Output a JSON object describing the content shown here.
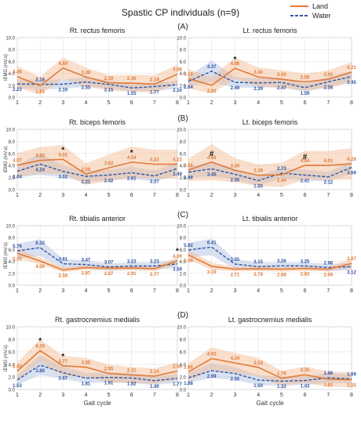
{
  "title": "Spastic CP individuals (n=9)",
  "legend": [
    {
      "name": "Land",
      "color": "#E07B39",
      "style": "solid"
    },
    {
      "name": "Water",
      "color": "#2F55A4",
      "style": "dashed"
    }
  ],
  "xlabel": "Gait cycle",
  "ylabel": "iEMG (mV.s)",
  "colors": {
    "land": "#E07B39",
    "water": "#2F55A4",
    "land_band": "#F2B88E",
    "water_band": "#B9C9E6",
    "grid": "#dddddd"
  },
  "chart_data": [
    {
      "type": "line",
      "panel": "(A)",
      "title": "Rt. rectus femoris",
      "x": [
        1,
        2,
        3,
        4,
        5,
        6,
        7,
        8
      ],
      "xlim": [
        1,
        8
      ],
      "ylim": [
        0,
        10
      ],
      "yticks": [
        0,
        2,
        4,
        6,
        8,
        10
      ],
      "xlabel": "",
      "ylabel": "iEMG (mV.s)",
      "series": [
        {
          "name": "Land",
          "values": [
            3.46,
            1.91,
            4.89,
            3.38,
            2.39,
            2.36,
            2.19,
            3.86
          ],
          "band": [
            1.8,
            1.5,
            1.8,
            1.6,
            1.3,
            1.4,
            1.5,
            1.6
          ]
        },
        {
          "name": "Water",
          "values": [
            2.23,
            2.16,
            2.19,
            2.55,
            2.15,
            1.55,
            1.77,
            2.1
          ],
          "band": [
            0.8,
            0.8,
            0.8,
            0.8,
            0.7,
            0.6,
            0.7,
            0.7
          ]
        }
      ],
      "markers": []
    },
    {
      "type": "line",
      "panel": "",
      "title": "Lt. rectus femoris",
      "x": [
        1,
        2,
        3,
        4,
        5,
        6,
        7,
        8
      ],
      "xlim": [
        1,
        8
      ],
      "ylim": [
        0,
        10
      ],
      "yticks": [
        0,
        2,
        4,
        6,
        8,
        10
      ],
      "xlabel": "",
      "ylabel": "",
      "series": [
        {
          "name": "Land",
          "values": [
            3.1,
            2.0,
            4.86,
            3.4,
            3.0,
            2.56,
            3.0,
            4.21
          ],
          "band": [
            1.6,
            1.4,
            1.8,
            1.6,
            1.5,
            1.4,
            1.5,
            1.7
          ]
        },
        {
          "name": "Water",
          "values": [
            2.64,
            4.37,
            2.49,
            2.39,
            2.47,
            1.59,
            2.58,
            3.45
          ],
          "band": [
            0.8,
            1.8,
            0.9,
            0.8,
            0.8,
            0.7,
            0.8,
            0.9
          ]
        }
      ],
      "markers": [
        {
          "x": 3,
          "y": 5.9,
          "text": "*"
        }
      ]
    },
    {
      "type": "line",
      "panel": "(B)",
      "title": "Rt. biceps femoris",
      "x": [
        1,
        2,
        3,
        4,
        5,
        6,
        7,
        8
      ],
      "xlim": [
        1,
        8
      ],
      "ylim": [
        0,
        10
      ],
      "yticks": [
        0,
        2,
        4,
        6,
        8,
        10
      ],
      "xlabel": "",
      "ylabel": "iEMG (mV.s)",
      "series": [
        {
          "name": "Land",
          "values": [
            4.07,
            4.85,
            5.02,
            2.58,
            3.62,
            4.54,
            4.22,
            4.22
          ],
          "band": [
            2.0,
            2.2,
            2.4,
            1.8,
            2.2,
            2.6,
            2.4,
            2.4
          ]
        },
        {
          "name": "Water",
          "values": [
            3.04,
            4.24,
            3.02,
            2.21,
            2.42,
            2.81,
            2.27,
            3.49
          ],
          "band": [
            1.0,
            1.8,
            1.0,
            0.9,
            0.9,
            1.0,
            0.9,
            1.1
          ]
        }
      ],
      "markers": [
        {
          "x": 3,
          "y": 6.2,
          "text": "*"
        },
        {
          "x": 6,
          "y": 5.7,
          "text": "*"
        }
      ]
    },
    {
      "type": "line",
      "panel": "",
      "title": "Lt. biceps femoris",
      "x": [
        1,
        2,
        3,
        4,
        5,
        6,
        7,
        8
      ],
      "xlim": [
        1,
        8
      ],
      "ylim": [
        0,
        10
      ],
      "yticks": [
        0,
        2,
        4,
        6,
        8,
        10
      ],
      "xlabel": "",
      "ylabel": "",
      "series": [
        {
          "name": "Land",
          "values": [
            3.26,
            4.56,
            3.2,
            2.39,
            2.44,
            4.04,
            4.01,
            4.28
          ],
          "band": [
            1.8,
            3.0,
            2.0,
            1.8,
            2.0,
            2.4,
            2.4,
            2.6
          ]
        },
        {
          "name": "Water",
          "values": [
            2.89,
            3.45,
            2.55,
            1.5,
            2.73,
            2.41,
            2.12,
            3.69
          ],
          "band": [
            0.9,
            1.2,
            0.9,
            0.8,
            0.9,
            0.9,
            0.8,
            1.0
          ]
        }
      ],
      "markers": [
        {
          "x": 2,
          "y": 5.5,
          "text": "#"
        },
        {
          "x": 6,
          "y": 5.0,
          "text": "#"
        }
      ]
    },
    {
      "type": "line",
      "panel": "(C)",
      "title": "Rt. tibialis anterior",
      "x": [
        1,
        2,
        3,
        4,
        5,
        6,
        7,
        8
      ],
      "xlim": [
        1,
        8
      ],
      "ylim": [
        0,
        10
      ],
      "yticks": [
        0,
        2,
        4,
        6,
        8,
        10
      ],
      "xlabel": "",
      "ylabel": "iEMG (mV.s)",
      "series": [
        {
          "name": "Land",
          "values": [
            5.35,
            4.06,
            2.58,
            2.97,
            2.87,
            2.91,
            2.77,
            4.09
          ],
          "band": [
            0.8,
            0.6,
            0.4,
            0.4,
            0.4,
            0.4,
            0.4,
            0.6
          ]
        },
        {
          "name": "Water",
          "values": [
            5.76,
            6.32,
            3.61,
            3.47,
            3.07,
            3.23,
            3.23,
            3.59
          ],
          "band": [
            1.2,
            1.4,
            0.8,
            0.7,
            0.6,
            0.6,
            0.6,
            0.7
          ]
        }
      ],
      "markers": [
        {
          "x": 8,
          "y": 5.3,
          "text": "*"
        }
      ]
    },
    {
      "type": "line",
      "panel": "",
      "title": "Lt. tibialis anterior",
      "x": [
        1,
        2,
        3,
        4,
        5,
        6,
        7,
        8
      ],
      "xlim": [
        1,
        8
      ],
      "ylim": [
        0,
        10
      ],
      "yticks": [
        0,
        2,
        4,
        6,
        8,
        10
      ],
      "xlabel": "",
      "ylabel": "",
      "series": [
        {
          "name": "Land",
          "values": [
            5.09,
            3.19,
            2.71,
            2.79,
            2.68,
            2.82,
            2.69,
            3.67
          ],
          "band": [
            0.8,
            0.6,
            0.4,
            0.4,
            0.4,
            0.4,
            0.4,
            0.8
          ]
        },
        {
          "name": "Water",
          "values": [
            5.92,
            6.41,
            3.55,
            3.15,
            3.26,
            3.25,
            2.98,
            3.12
          ],
          "band": [
            1.2,
            1.4,
            0.8,
            0.7,
            0.6,
            0.6,
            0.6,
            0.6
          ]
        }
      ],
      "markers": []
    },
    {
      "type": "line",
      "panel": "(D)",
      "title": "Rt. gastrocnemius medialis",
      "x": [
        1,
        2,
        3,
        4,
        5,
        6,
        7,
        8
      ],
      "xlim": [
        1,
        8
      ],
      "ylim": [
        0,
        10
      ],
      "yticks": [
        0,
        2,
        4,
        6,
        8,
        10
      ],
      "xlabel": "Gait cycle",
      "ylabel": "iEMG (mV.s)",
      "series": [
        {
          "name": "Land",
          "values": [
            2.92,
            6.2,
            3.77,
            3.55,
            2.55,
            2.31,
            2.14,
            2.92
          ],
          "band": [
            1.4,
            1.8,
            1.6,
            1.5,
            1.4,
            1.3,
            1.2,
            1.4
          ]
        },
        {
          "name": "Water",
          "values": [
            1.53,
            3.89,
            2.67,
            1.81,
            1.91,
            1.82,
            1.4,
            1.77
          ],
          "band": [
            0.8,
            1.6,
            1.0,
            0.8,
            0.8,
            0.8,
            0.7,
            0.7
          ]
        }
      ],
      "markers": [
        {
          "x": 2,
          "y": 7.4,
          "text": "*"
        },
        {
          "x": 3,
          "y": 4.9,
          "text": "*"
        }
      ]
    },
    {
      "type": "line",
      "panel": "",
      "title": "Lt. gastrocnemius medialis",
      "x": [
        1,
        2,
        3,
        4,
        5,
        6,
        7,
        8
      ],
      "xlim": [
        1,
        8
      ],
      "ylim": [
        0,
        10
      ],
      "yticks": [
        0,
        2,
        4,
        6,
        8,
        10
      ],
      "xlabel": "Gait cycle",
      "ylabel": "",
      "series": [
        {
          "name": "Land",
          "values": [
            2.8,
            4.92,
            4.24,
            3.53,
            1.79,
            2.35,
            1.63,
            1.55
          ],
          "band": [
            1.4,
            1.8,
            1.6,
            1.5,
            1.2,
            1.3,
            1.2,
            1.2
          ]
        },
        {
          "name": "Water",
          "values": [
            1.88,
            2.99,
            2.55,
            1.5,
            1.32,
            1.43,
            1.86,
            1.69
          ],
          "band": [
            0.8,
            1.2,
            1.0,
            0.8,
            0.7,
            0.7,
            0.8,
            0.7
          ]
        }
      ],
      "markers": []
    }
  ]
}
